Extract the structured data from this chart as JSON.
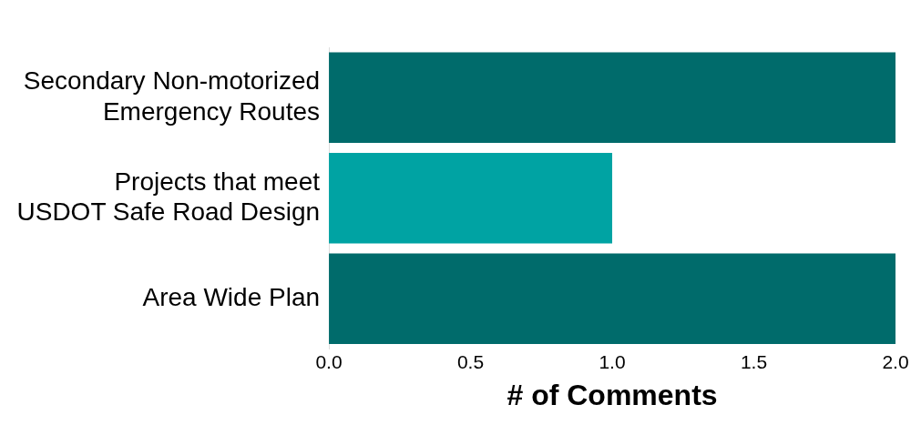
{
  "chart_data": {
    "type": "bar",
    "orientation": "horizontal",
    "xlabel": "# of Comments",
    "categories": [
      "Secondary Non-motorized Emergency Routes",
      "Projects that meet USDOT Safe Road Design",
      "Area Wide Plan"
    ],
    "values": [
      2,
      1,
      2
    ],
    "colors": [
      "#006b6b",
      "#00a3a3",
      "#006b6b"
    ],
    "xlim": [
      0,
      2
    ],
    "xticks": [
      {
        "value": 0,
        "label": "0.0"
      },
      {
        "value": 0.5,
        "label": "0.5"
      },
      {
        "value": 1,
        "label": "1.0"
      },
      {
        "value": 1.5,
        "label": "1.5"
      },
      {
        "value": 2,
        "label": "2.0"
      }
    ],
    "grid": false,
    "legend": false
  }
}
